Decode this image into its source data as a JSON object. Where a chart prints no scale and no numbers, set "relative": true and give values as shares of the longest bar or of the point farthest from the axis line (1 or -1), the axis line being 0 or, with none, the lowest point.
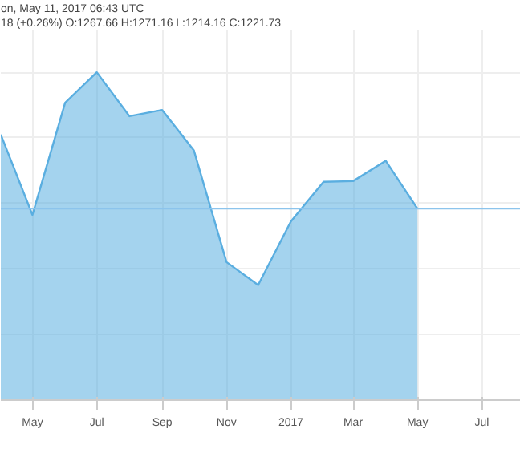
{
  "chart_data": {
    "type": "area",
    "relative": true,
    "x": [
      "2016-04",
      "2016-05",
      "2016-06",
      "2016-07",
      "2016-08",
      "2016-09",
      "2016-10",
      "2016-11",
      "2016-12",
      "2017-01",
      "2017-02",
      "2017-03",
      "2017-04",
      "2017-05"
    ],
    "series": [
      {
        "color": "#5aaee0",
        "values": [
          0.81,
          0.565,
          0.907,
          1,
          0.866,
          0.885,
          0.762,
          0.421,
          0.351,
          0.545,
          0.666,
          0.668,
          0.73,
          0.584
        ]
      }
    ],
    "xlim": [
      "2016-04",
      "2017-08-07"
    ],
    "xticks": [
      {
        "value": "2016-05",
        "label": "May"
      },
      {
        "value": "2016-07",
        "label": "Jul"
      },
      {
        "value": "2016-09",
        "label": "Sep"
      },
      {
        "value": "2016-11",
        "label": "Nov"
      },
      {
        "value": "2017-01",
        "label": "2017"
      },
      {
        "value": "2017-03",
        "label": "Mar"
      },
      {
        "value": "2017-05",
        "label": "May"
      },
      {
        "value": "2017-07",
        "label": "Jul"
      }
    ],
    "ref_lines": [
      {
        "axis": "y",
        "value": 0.584,
        "color": "#8cc4ec"
      }
    ],
    "annotations": [
      "on, May 11, 2017 06:43 UTC",
      "18 (+0.26%) O:1267.66 H:1271.16 L:1214.16 C:1221.73"
    ],
    "grid": true
  }
}
